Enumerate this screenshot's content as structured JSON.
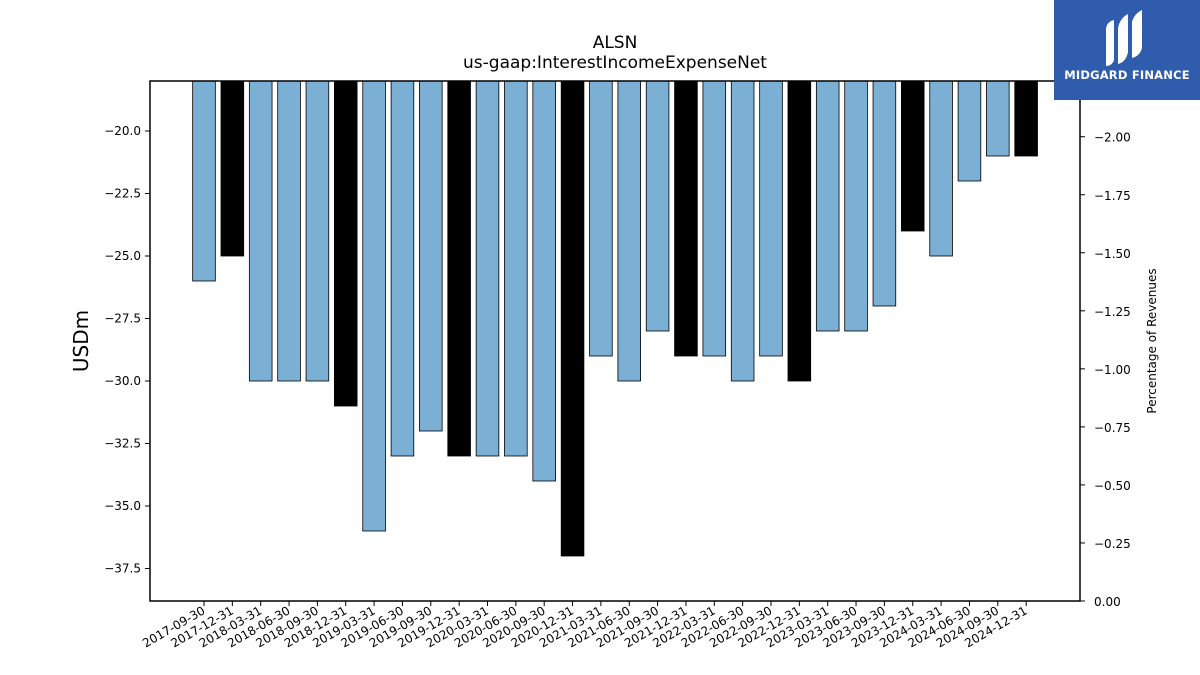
{
  "chart_data": {
    "type": "bar",
    "title": "ALSN",
    "subtitle": "us-gaap:InterestIncomeExpenseNet",
    "ylabel": "USDm",
    "y2label": "Percentage of Revenues",
    "categories": [
      "2017-09-30",
      "2017-12-31",
      "2018-03-31",
      "2018-06-30",
      "2018-09-30",
      "2018-12-31",
      "2019-03-31",
      "2019-06-30",
      "2019-09-30",
      "2019-12-31",
      "2020-03-31",
      "2020-06-30",
      "2020-09-30",
      "2020-12-31",
      "2021-03-31",
      "2021-06-30",
      "2021-09-30",
      "2021-12-31",
      "2022-03-31",
      "2022-06-30",
      "2022-09-30",
      "2022-12-31",
      "2023-03-31",
      "2023-06-30",
      "2023-09-30",
      "2023-12-31",
      "2024-03-31",
      "2024-06-30",
      "2024-09-30",
      "2024-12-31"
    ],
    "values": [
      -26,
      -25,
      -30,
      -30,
      -30,
      -31,
      -36,
      -33,
      -32,
      -33,
      -33,
      -33,
      -34,
      -37,
      -29,
      -30,
      -28,
      -29,
      -29,
      -30,
      -29,
      -30,
      -28,
      -28,
      -27,
      -24,
      -25,
      -22,
      -21,
      -21
    ],
    "annual": [
      false,
      true,
      false,
      false,
      false,
      true,
      false,
      false,
      false,
      true,
      false,
      false,
      false,
      true,
      false,
      false,
      false,
      true,
      false,
      false,
      false,
      true,
      false,
      false,
      false,
      true,
      false,
      false,
      false,
      true
    ],
    "ylim": [
      -38.8,
      -18.0
    ],
    "yticks": [
      -20.0,
      -22.5,
      -25.0,
      -27.5,
      -30.0,
      -32.5,
      -35.0,
      -37.5
    ],
    "ytick_labels": [
      "−20.0",
      "−22.5",
      "−25.0",
      "−27.5",
      "−30.0",
      "−32.5",
      "−35.0",
      "−37.5"
    ],
    "y2lim": [
      0.0,
      -2.24
    ],
    "y2ticks": [
      0.0,
      -0.25,
      -0.5,
      -0.75,
      -1.0,
      -1.25,
      -1.5,
      -1.75,
      -2.0
    ],
    "y2tick_labels": [
      "0.00",
      "−0.25",
      "−0.50",
      "−0.75",
      "−1.00",
      "−1.25",
      "−1.50",
      "−1.75",
      "−2.00"
    ],
    "colors": {
      "quarterly": "#7bafd4",
      "annual": "#000000",
      "edge": "#000000"
    },
    "grid": false,
    "legend": "none"
  },
  "logo": {
    "text": "MIDGARD FINANCE",
    "icon": "midgard-logo-icon",
    "color": "#2f5cac"
  }
}
